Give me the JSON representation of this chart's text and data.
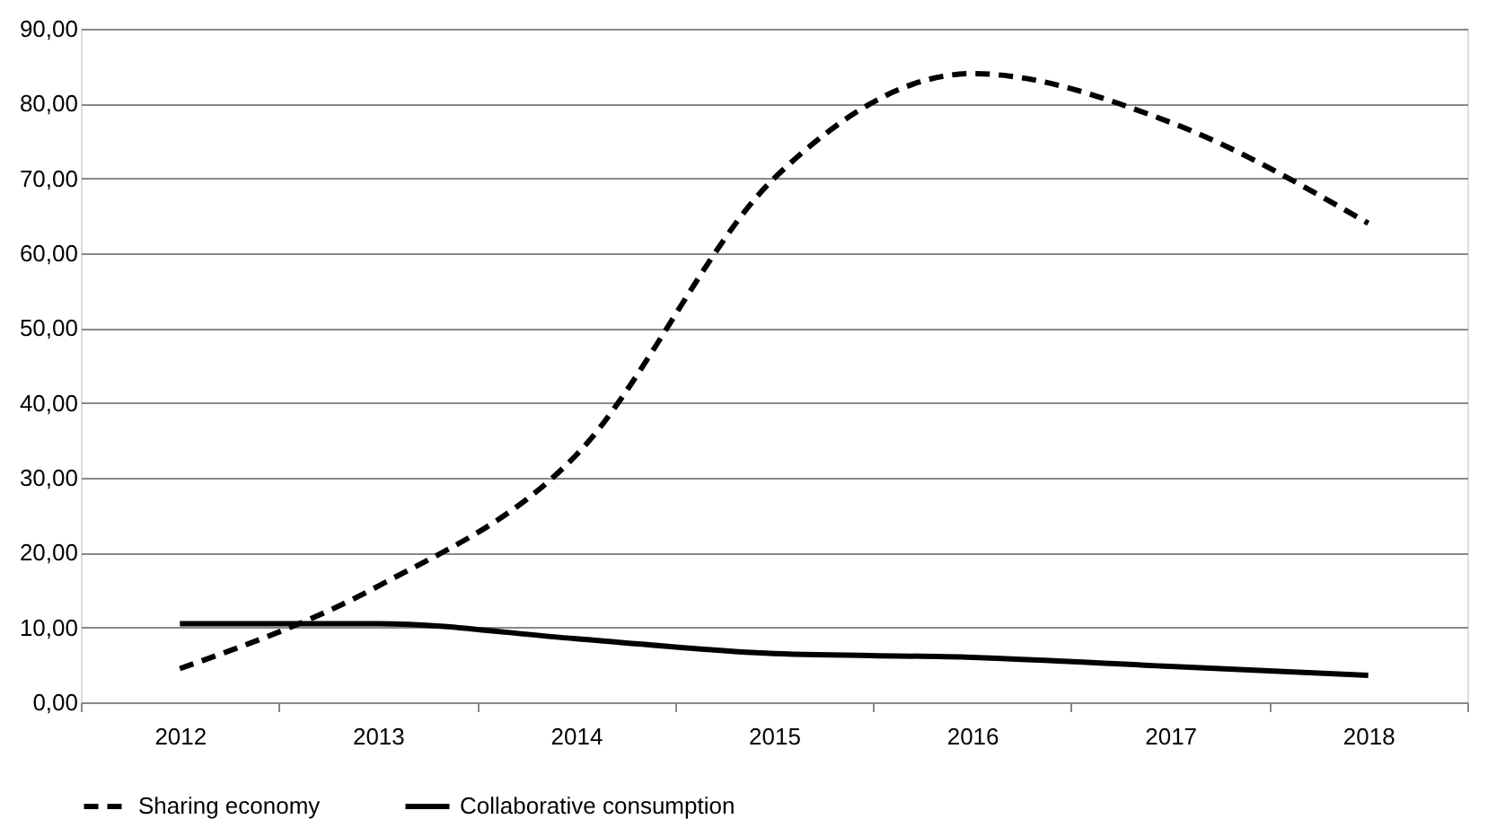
{
  "chart_data": {
    "type": "line",
    "categories": [
      "2012",
      "2013",
      "2014",
      "2015",
      "2016",
      "2017",
      "2018"
    ],
    "series": [
      {
        "name": "Sharing economy",
        "color": "#000000",
        "line_style": "dashed",
        "values": [
          4.5,
          15.5,
          33.0,
          70.0,
          84.0,
          77.5,
          64.0
        ]
      },
      {
        "name": "Collaborative consumption",
        "color": "#000000",
        "line_style": "solid",
        "values": [
          10.5,
          10.5,
          8.5,
          6.5,
          6.0,
          4.8,
          3.6
        ]
      }
    ],
    "ylim": [
      0,
      90
    ],
    "yticks": [
      {
        "value": 0,
        "label": "0,00"
      },
      {
        "value": 10,
        "label": "10,00"
      },
      {
        "value": 20,
        "label": "20,00"
      },
      {
        "value": 30,
        "label": "30,00"
      },
      {
        "value": 40,
        "label": "40,00"
      },
      {
        "value": 50,
        "label": "50,00"
      },
      {
        "value": 60,
        "label": "60,00"
      },
      {
        "value": 70,
        "label": "70,00"
      },
      {
        "value": 80,
        "label": "80,00"
      },
      {
        "value": 90,
        "label": "90,00"
      }
    ],
    "grid": "y",
    "legend": "bottom",
    "marker": "none"
  }
}
